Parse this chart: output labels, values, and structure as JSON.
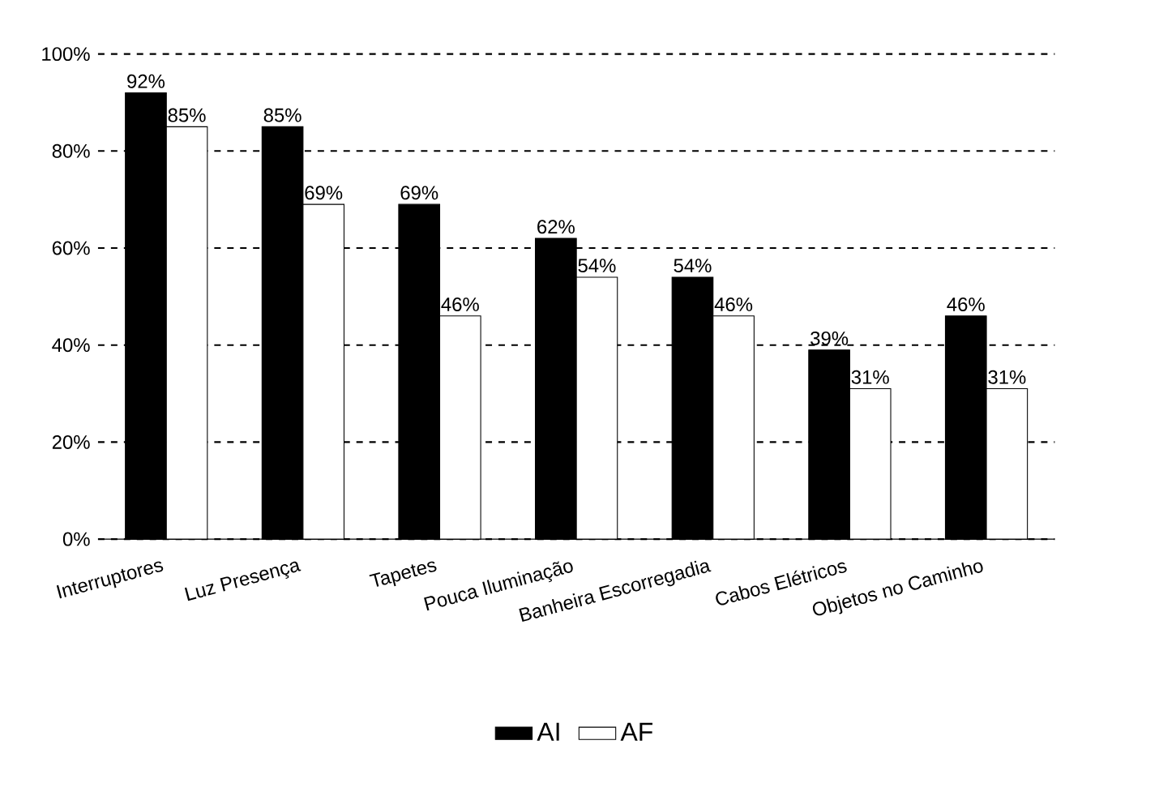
{
  "chart_data": {
    "type": "bar",
    "categories": [
      "Interruptores",
      "Luz Presença",
      "Tapetes",
      "Pouca Iluminação",
      "Banheira Escorregadia",
      "Cabos Elétricos",
      "Objetos no Caminho"
    ],
    "series": [
      {
        "name": "AI",
        "color": "#000000",
        "values": [
          92,
          85,
          69,
          62,
          54,
          39,
          46
        ],
        "value_labels": [
          "92%",
          "85%",
          "69%",
          "62%",
          "54%",
          "39%",
          "46%"
        ]
      },
      {
        "name": "AF",
        "color": "#ffffff",
        "values": [
          85,
          69,
          46,
          54,
          46,
          31,
          31
        ],
        "value_labels": [
          "85%",
          "69%",
          "46%",
          "54%",
          "46%",
          "31%",
          "31%"
        ]
      }
    ],
    "ylim": [
      0,
      100
    ],
    "yticks": [
      {
        "value": 0,
        "label": "0%"
      },
      {
        "value": 20,
        "label": "20%"
      },
      {
        "value": 40,
        "label": "40%"
      },
      {
        "value": 60,
        "label": "60%"
      },
      {
        "value": 80,
        "label": "80%"
      },
      {
        "value": 100,
        "label": "100%"
      }
    ],
    "grid": "y",
    "legend": "bottom"
  }
}
